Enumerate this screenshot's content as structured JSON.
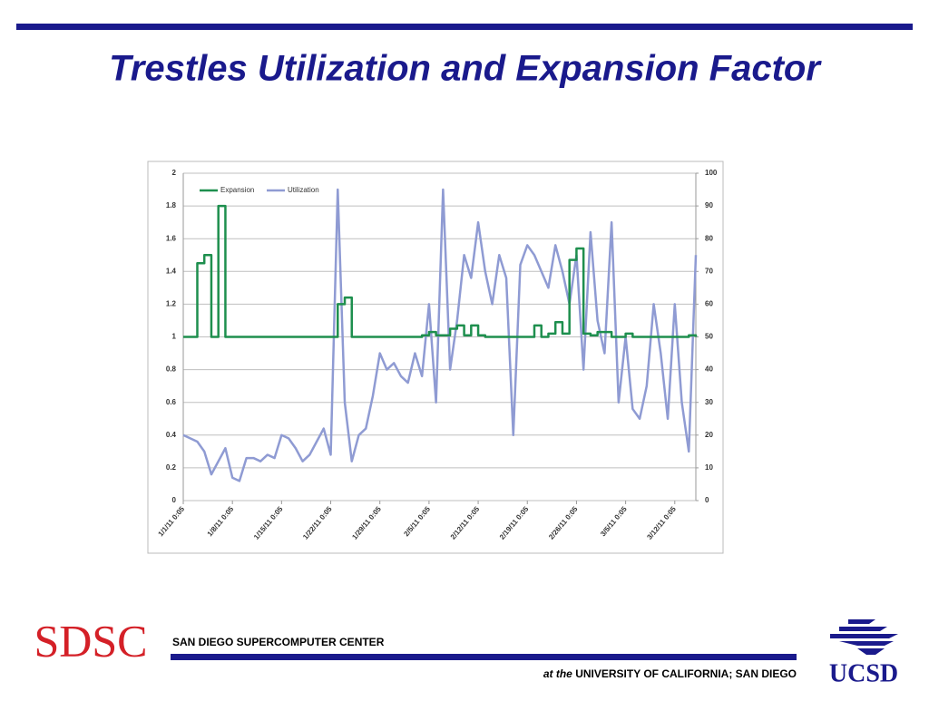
{
  "slide": {
    "title": "Trestles Utilization and Expansion Factor"
  },
  "chart_data": {
    "type": "line",
    "x": [
      "1/1/11 0:05",
      "1/2/11 0:05",
      "1/3/11 0:05",
      "1/4/11 0:05",
      "1/5/11 0:05",
      "1/6/11 0:05",
      "1/7/11 0:05",
      "1/8/11 0:05",
      "1/9/11 0:05",
      "1/10/11 0:05",
      "1/11/11 0:05",
      "1/12/11 0:05",
      "1/13/11 0:05",
      "1/14/11 0:05",
      "1/15/11 0:05",
      "1/16/11 0:05",
      "1/17/11 0:05",
      "1/18/11 0:05",
      "1/19/11 0:05",
      "1/20/11 0:05",
      "1/21/11 0:05",
      "1/22/11 0:05",
      "1/23/11 0:05",
      "1/24/11 0:05",
      "1/25/11 0:05",
      "1/26/11 0:05",
      "1/27/11 0:05",
      "1/28/11 0:05",
      "1/29/11 0:05",
      "1/30/11 0:05",
      "1/31/11 0:05",
      "2/1/11 0:05",
      "2/2/11 0:05",
      "2/3/11 0:05",
      "2/4/11 0:05",
      "2/5/11 0:05",
      "2/6/11 0:05",
      "2/7/11 0:05",
      "2/8/11 0:05",
      "2/9/11 0:05",
      "2/10/11 0:05",
      "2/11/11 0:05",
      "2/12/11 0:05",
      "2/13/11 0:05",
      "2/14/11 0:05",
      "2/15/11 0:05",
      "2/16/11 0:05",
      "2/17/11 0:05",
      "2/18/11 0:05",
      "2/19/11 0:05",
      "2/20/11 0:05",
      "2/21/11 0:05",
      "2/22/11 0:05",
      "2/23/11 0:05",
      "2/24/11 0:05",
      "2/25/11 0:05",
      "2/26/11 0:05",
      "2/27/11 0:05",
      "2/28/11 0:05",
      "3/1/11 0:05",
      "3/2/11 0:05",
      "3/3/11 0:05",
      "3/4/11 0:05",
      "3/5/11 0:05",
      "3/6/11 0:05",
      "3/7/11 0:05",
      "3/8/11 0:05",
      "3/9/11 0:05",
      "3/10/11 0:05",
      "3/11/11 0:05",
      "3/12/11 0:05",
      "3/13/11 0:05",
      "3/14/11 0:05",
      "3/15/11 0:05"
    ],
    "xticks": [
      "1/1/11 0:05",
      "1/8/11 0:05",
      "1/15/11 0:05",
      "1/22/11 0:05",
      "1/29/11 0:05",
      "2/5/11 0:05",
      "2/12/11 0:05",
      "2/19/11 0:05",
      "2/26/11 0:05",
      "3/5/11 0:05",
      "3/12/11 0:05"
    ],
    "series": [
      {
        "name": "Expansion",
        "color": "#1e8f4e",
        "axis": "y",
        "step": true,
        "values": [
          1,
          1,
          1.45,
          1.5,
          1,
          1.8,
          1,
          1,
          1,
          1,
          1,
          1,
          1,
          1,
          1,
          1,
          1,
          1,
          1,
          1,
          1,
          1,
          1.2,
          1.24,
          1,
          1,
          1,
          1,
          1,
          1,
          1,
          1,
          1,
          1,
          1.01,
          1.03,
          1.01,
          1.01,
          1.05,
          1.07,
          1.01,
          1.07,
          1.01,
          1,
          1,
          1,
          1,
          1,
          1,
          1,
          1.07,
          1,
          1.02,
          1.09,
          1.02,
          1.47,
          1.54,
          1.02,
          1.01,
          1.03,
          1.03,
          1,
          1,
          1.02,
          1,
          1,
          1,
          1,
          1,
          1,
          1,
          1,
          1.01,
          1
        ]
      },
      {
        "name": "Utilization",
        "color": "#8f9bd3",
        "axis": "y2",
        "values": [
          20,
          19,
          18,
          15,
          8,
          12,
          16,
          7,
          6,
          13,
          13,
          12,
          14,
          13,
          20,
          19,
          16,
          12,
          14,
          18,
          22,
          14,
          95,
          30,
          12,
          20,
          22,
          32,
          45,
          40,
          42,
          38,
          36,
          45,
          38,
          60,
          30,
          95,
          40,
          55,
          75,
          68,
          85,
          70,
          60,
          75,
          68,
          20,
          72,
          78,
          75,
          70,
          65,
          78,
          70,
          60,
          75,
          40,
          82,
          55,
          45,
          85,
          30,
          50,
          28,
          25,
          35,
          60,
          45,
          25,
          60,
          30,
          15,
          75
        ]
      }
    ],
    "ylim": [
      0,
      2
    ],
    "yticks": [
      0,
      0.2,
      0.4,
      0.6,
      0.8,
      1,
      1.2,
      1.4,
      1.6,
      1.8,
      2
    ],
    "y2lim": [
      0,
      100
    ],
    "y2ticks": [
      0,
      10,
      20,
      30,
      40,
      50,
      60,
      70,
      80,
      90,
      100
    ],
    "grid": true,
    "legend": "top-left"
  },
  "footer": {
    "left_logo": "SDSC",
    "center": "SAN DIEGO SUPERCOMPUTER CENTER",
    "at_the": "at the",
    "university": "UNIVERSITY OF CALIFORNIA; SAN DIEGO",
    "right_logo": "UCSD"
  }
}
